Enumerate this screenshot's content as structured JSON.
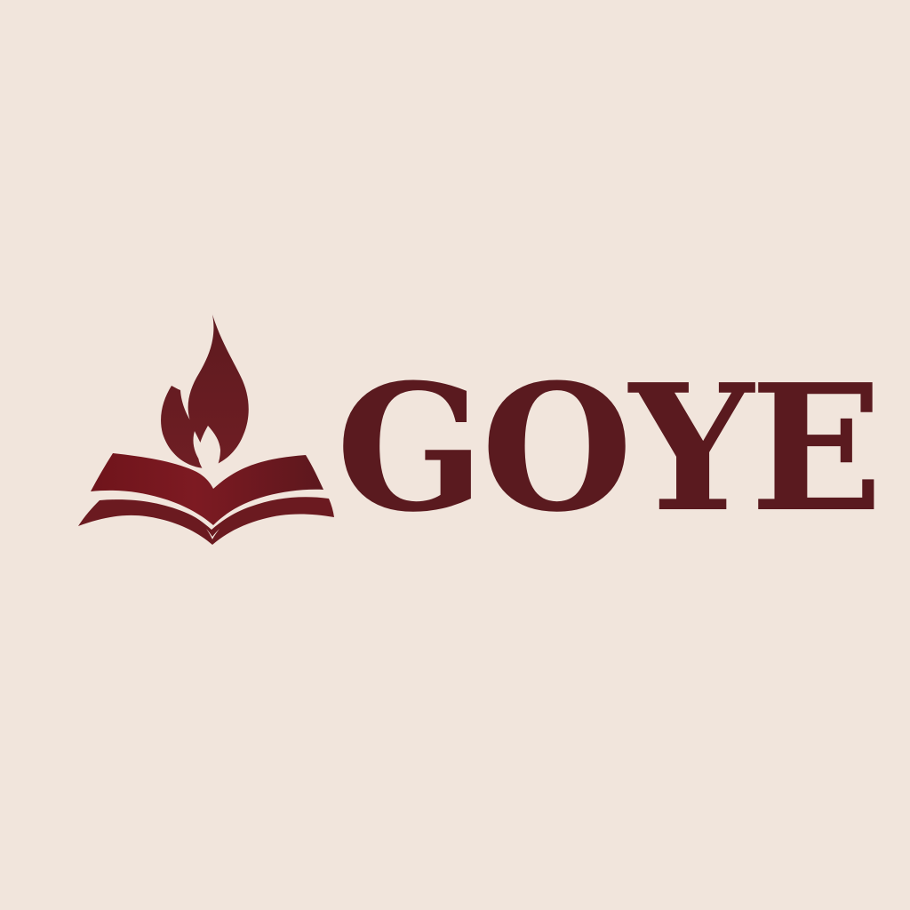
{
  "logo": {
    "name": "GOYE",
    "emblem_icon": "open-book-flame-icon",
    "colors": {
      "background": "#f1e5dc",
      "primary": "#5a1a1f",
      "accent": "#7f1d22"
    }
  }
}
